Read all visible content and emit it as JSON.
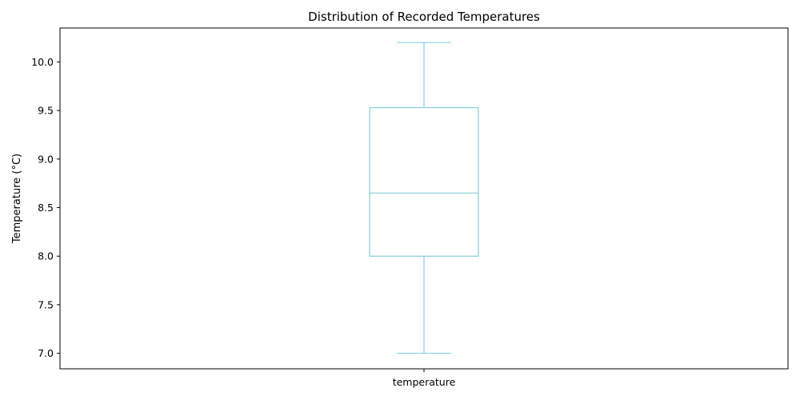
{
  "chart_data": {
    "type": "box",
    "title": "Distribution of Recorded Temperatures",
    "xlabel": "",
    "ylabel": "Temperature (°C)",
    "categories": [
      "temperature"
    ],
    "boxes": [
      {
        "name": "temperature",
        "whisker_low": 7.0,
        "q1": 8.0,
        "median": 8.65,
        "q3": 9.53,
        "whisker_high": 10.2
      }
    ],
    "ylim": [
      6.84,
      10.35
    ],
    "yticks": [
      7.0,
      7.5,
      8.0,
      8.5,
      9.0,
      9.5,
      10.0
    ],
    "ytick_labels": [
      "7.0",
      "7.5",
      "8.0",
      "8.5",
      "9.0",
      "9.5",
      "10.0"
    ],
    "grid": false,
    "color": "#87cedb"
  }
}
